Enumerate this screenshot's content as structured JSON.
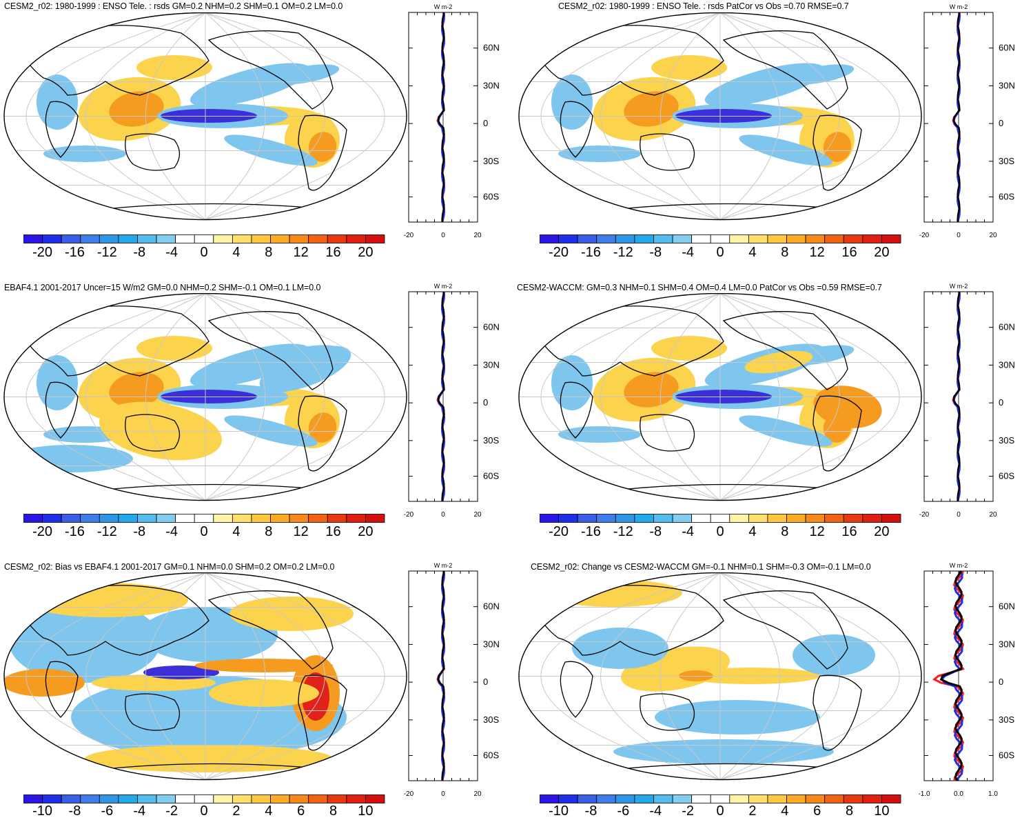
{
  "panels": [
    {
      "id": "p1",
      "title": "CESM2_r02: 1980-1999 : ENSO Tele. : rsds GM=0.2 NHM=0.2 SHM=0.1 OM=0.2 LM=0.0",
      "colorbar_labels": [
        "-20",
        "-16",
        "-12",
        "-8",
        "-4",
        "0",
        "4",
        "8",
        "12",
        "16",
        "20"
      ],
      "zonal_xticks": [
        "-20",
        "0",
        "20"
      ],
      "zonal_units": "W m-2",
      "lat_labels": [
        "60N",
        "30N",
        "0",
        "30S",
        "60S"
      ]
    },
    {
      "id": "p2",
      "title": "CESM2_r02: 1980-1999 : ENSO Tele. : rsds PatCor vs Obs =0.70 RMSE=0.7",
      "colorbar_labels": [
        "-20",
        "-16",
        "-12",
        "-8",
        "-4",
        "0",
        "4",
        "8",
        "12",
        "16",
        "20"
      ],
      "zonal_xticks": [
        "-20",
        "0",
        "20"
      ],
      "zonal_units": "W m-2",
      "lat_labels": [
        "60N",
        "30N",
        "0",
        "30S",
        "60S"
      ]
    },
    {
      "id": "p3",
      "title": "EBAF4.1 2001-2017 Uncer=15 W/m2 GM=0.0 NHM=0.2 SHM=-0.1 OM=0.1 LM=0.0",
      "colorbar_labels": [
        "-20",
        "-16",
        "-12",
        "-8",
        "-4",
        "0",
        "4",
        "8",
        "12",
        "16",
        "20"
      ],
      "zonal_xticks": [
        "-20",
        "0",
        "20"
      ],
      "zonal_units": "W m-2",
      "lat_labels": [
        "60N",
        "30N",
        "0",
        "30S",
        "60S"
      ]
    },
    {
      "id": "p4",
      "title": "CESM2-WACCM: GM=0.3 NHM=0.1 SHM=0.4 OM=0.4 LM=0.0 PatCor vs Obs =0.59 RMSE=0.7",
      "colorbar_labels": [
        "-20",
        "-16",
        "-12",
        "-8",
        "-4",
        "0",
        "4",
        "8",
        "12",
        "16",
        "20"
      ],
      "zonal_xticks": [
        "-20",
        "0",
        "20"
      ],
      "zonal_units": "W m-2",
      "lat_labels": [
        "60N",
        "30N",
        "0",
        "30S",
        "60S"
      ]
    },
    {
      "id": "p5",
      "title": "CESM2_r02: Bias vs EBAF4.1 2001-2017 GM=0.1 NHM=0.0 SHM=0.2 OM=0.2 LM=0.0",
      "colorbar_labels": [
        "-10",
        "-8",
        "-6",
        "-4",
        "-2",
        "0",
        "2",
        "4",
        "6",
        "8",
        "10"
      ],
      "zonal_xticks": [
        "-20",
        "0",
        "20"
      ],
      "zonal_units": "W m-2",
      "lat_labels": [
        "60N",
        "30N",
        "0",
        "30S",
        "60S"
      ]
    },
    {
      "id": "p6",
      "title": "CESM2_r02: Change vs CESM2-WACCM GM=-0.1 NHM=0.1 SHM=-0.3 OM=-0.1 LM=0.0",
      "colorbar_labels": [
        "-10",
        "-8",
        "-6",
        "-4",
        "-2",
        "0",
        "2",
        "4",
        "6",
        "8",
        "10"
      ],
      "zonal_xticks": [
        "-1.0",
        "0.0",
        "1.0"
      ],
      "zonal_units": "W m-2",
      "lat_labels": [
        "60N",
        "30N",
        "0",
        "30S",
        "60S"
      ]
    }
  ],
  "colors": {
    "palette": [
      "#2b14e6",
      "#1f2ee8",
      "#3a5ee6",
      "#3f7ee8",
      "#2f95e6",
      "#26a9ea",
      "#55bcef",
      "#85cdf0",
      "#ffffff",
      "#ffffff",
      "#fff3a8",
      "#ffdf6e",
      "#ffc740",
      "#fdaa26",
      "#f78a1a",
      "#f06414",
      "#e83a10",
      "#e01e12",
      "#d40f0f"
    ],
    "nino_blue": "#3a2fd8",
    "nino_cyan": "#7ec6ee",
    "warm": "#fcd34d",
    "orange": "#f59b1f",
    "red_line": "#ff1a1a",
    "blue_line": "#1f2fe0",
    "black_line": "#000000"
  }
}
